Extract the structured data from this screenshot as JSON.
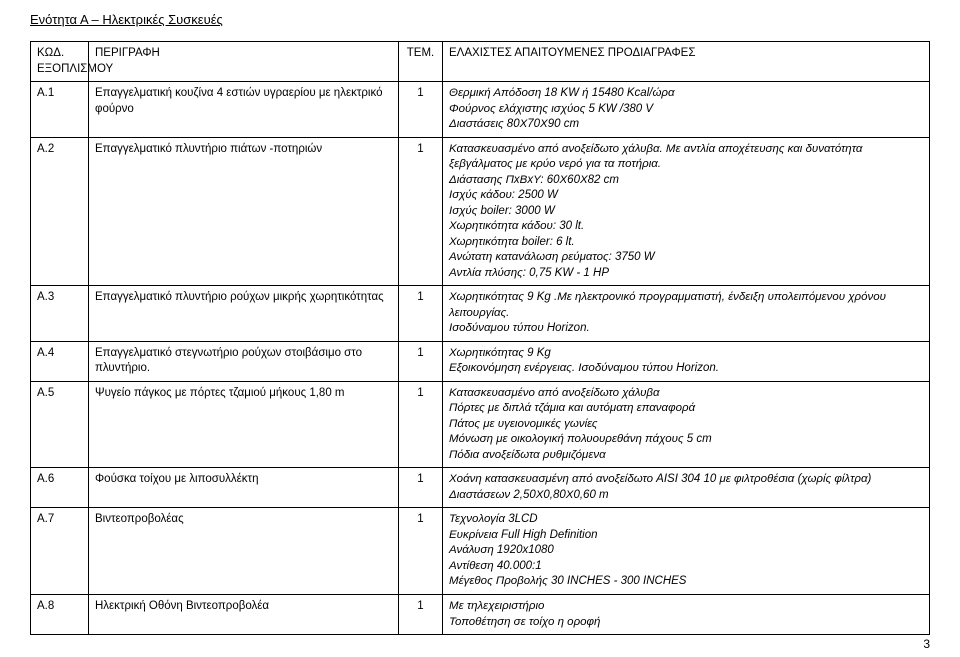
{
  "section_title": "Ενότητα Α – Ηλεκτρικές Συσκευές",
  "page_number": "3",
  "headers": {
    "code": "ΚΩΔ. ΕΞΟΠΛΙΣΜΟΥ",
    "desc": "ΠΕΡΙΓΡΑΦΗ",
    "qty": "ΤΕΜ.",
    "spec": "ΕΛΑΧΙΣΤΕΣ ΑΠΑΙΤΟΥΜΕΝΕΣ ΠΡΟΔΙΑΓΡΑΦΕΣ"
  },
  "rows": [
    {
      "code": "Α.1",
      "desc": "Επαγγελματική κουζίνα 4 εστιών υγραερίου με ηλεκτρικό φούρνο",
      "qty": "1",
      "spec": "Θερμική Απόδοση 18 KW ή 15480 Kcal/ώρα\nΦούρνος ελάχιστης ισχύος 5 KW /380 V\nΔιαστάσεις 80Χ70Χ90 cm"
    },
    {
      "code": "Α.2",
      "desc": "Επαγγελματικό πλυντήριο πιάτων -ποτηριών",
      "qty": "1",
      "spec": "Κατασκευασμένο από ανοξείδωτο χάλυβα. Με αντλία αποχέτευσης και δυνατότητα ξεβγάλματος με κρύο νερό για τα ποτήρια.\nΔιάστασης ΠxΒxΥ: 60Χ60Χ82 cm\nΙσχύς κάδου: 2500 W\nΙσχύς boiler: 3000 W\nΧωρητικότητα κάδου: 30 lt.\nΧωρητικότητα boiler: 6 lt.\nΑνώτατη κατανάλωση ρεύματος: 3750 W\nΑντλία πλύσης: 0,75 KW - 1 HP"
    },
    {
      "code": "Α.3",
      "desc": "Επαγγελματικό πλυντήριο ρούχων μικρής χωρητικότητας",
      "qty": "1",
      "spec": "Χωρητικότητας 9 Kg .Με ηλεκτρονικό προγραμματιστή, ένδειξη υπολειπόμενου χρόνου λειτουργίας.\nΙσοδύναμου τύπου Horizon."
    },
    {
      "code": "Α.4",
      "desc": "Επαγγελματικό στεγνωτήριο ρούχων στοιβάσιμο στο πλυντήριο.",
      "qty": "1",
      "spec": "Χωρητικότητας 9 Kg\nΕξοικονόμηση ενέργειας. Ισοδύναμου τύπου Horizon."
    },
    {
      "code": "Α.5",
      "desc": "Ψυγείο πάγκος με πόρτες τζαμιού μήκους 1,80 m",
      "qty": "1",
      "spec": "Κατασκευασμένο από ανοξείδωτο χάλυβα\nΠόρτες με διπλά τζάμια και αυτόματη επαναφορά\nΠάτος με υγειονομικές γωνίες\nΜόνωση με οικολογική πολυουρεθάνη πάχους 5 cm\nΠόδια ανοξείδωτα ρυθμιζόμενα"
    },
    {
      "code": "Α.6",
      "desc": "Φούσκα τοίχου με λιποσυλλέκτη",
      "qty": "1",
      "spec": "Χοάνη κατασκευασμένη από ανοξείδωτο AISI 304 10 με φιλτροθέσια (χωρίς φίλτρα)\nΔιαστάσεων 2,50Χ0,80Χ0,60 m"
    },
    {
      "code": "Α.7",
      "desc": "Βιντεοπροβολέας",
      "qty": "1",
      "spec": "Τεχνολογία 3LCD\nΕυκρίνεια Full High Definition\nΑνάλυση 1920x1080\nΑντίθεση 40.000:1\nΜέγεθος Προβολής 30 INCHES - 300 INCHES"
    },
    {
      "code": "Α.8",
      "desc": "Ηλεκτρική Οθόνη Βιντεοπροβολέα",
      "qty": "1",
      "spec": "Με τηλεχειριστήριο\nΤοποθέτηση σε τοίχο η οροφή"
    }
  ]
}
